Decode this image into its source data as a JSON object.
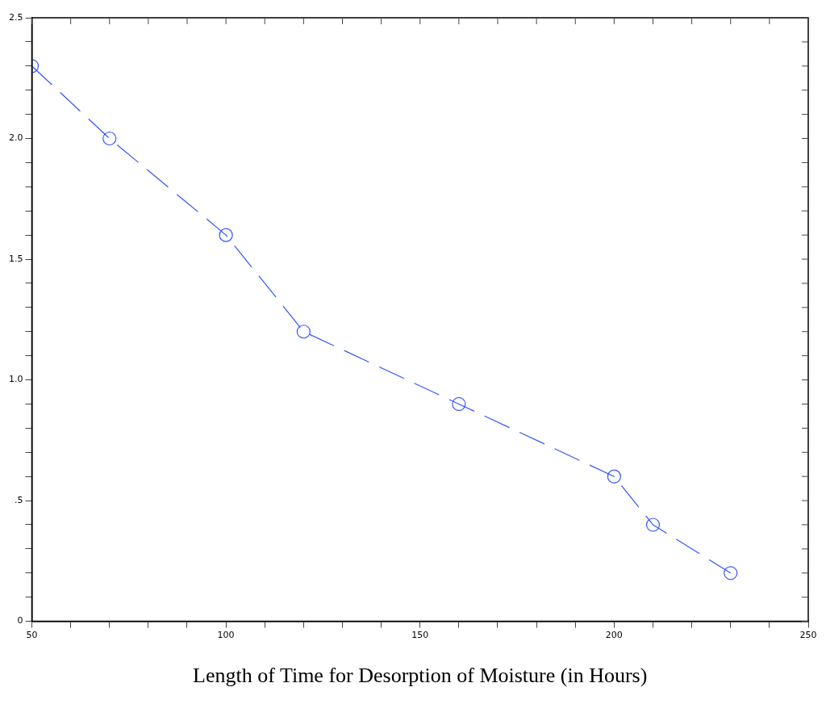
{
  "chart_data": {
    "type": "line",
    "xlabel": "Length of Time for Desorption of Moisture (in Hours)",
    "x": [
      50,
      70,
      100,
      120,
      160,
      200,
      210,
      230
    ],
    "series": [
      {
        "color": "#3355ff",
        "values": [
          2.3,
          2.0,
          1.6,
          1.2,
          0.9,
          0.6,
          0.4,
          0.2
        ]
      }
    ],
    "xlim": [
      50,
      250
    ],
    "xticks": [
      50,
      {
        "value": 60,
        "label": null
      },
      {
        "value": 70,
        "label": null
      },
      {
        "value": 80,
        "label": null
      },
      {
        "value": 90,
        "label": null
      },
      100,
      {
        "value": 110,
        "label": null
      },
      {
        "value": 120,
        "label": null
      },
      {
        "value": 130,
        "label": null
      },
      {
        "value": 140,
        "label": null
      },
      150,
      {
        "value": 160,
        "label": null
      },
      {
        "value": 170,
        "label": null
      },
      {
        "value": 180,
        "label": null
      },
      {
        "value": 190,
        "label": null
      },
      200,
      {
        "value": 210,
        "label": null
      },
      {
        "value": 220,
        "label": null
      },
      {
        "value": 230,
        "label": null
      },
      {
        "value": 240,
        "label": null
      },
      250
    ],
    "ylim": [
      0,
      2.5
    ],
    "yticks": [
      {
        "value": 0,
        "label": "0"
      },
      {
        "value": 0.1,
        "label": null
      },
      {
        "value": 0.2,
        "label": null
      },
      {
        "value": 0.3,
        "label": null
      },
      {
        "value": 0.4,
        "label": null
      },
      {
        "value": 0.5,
        "label": ".5"
      },
      {
        "value": 0.6,
        "label": null
      },
      {
        "value": 0.7,
        "label": null
      },
      {
        "value": 0.8,
        "label": null
      },
      {
        "value": 0.9,
        "label": null
      },
      {
        "value": 1.0,
        "label": "1.0"
      },
      {
        "value": 1.1,
        "label": null
      },
      {
        "value": 1.2,
        "label": null
      },
      {
        "value": 1.3,
        "label": null
      },
      {
        "value": 1.4,
        "label": null
      },
      {
        "value": 1.5,
        "label": "1.5"
      },
      {
        "value": 1.6,
        "label": null
      },
      {
        "value": 1.7,
        "label": null
      },
      {
        "value": 1.8,
        "label": null
      },
      {
        "value": 1.9,
        "label": null
      },
      {
        "value": 2.0,
        "label": "2.0"
      },
      {
        "value": 2.1,
        "label": null
      },
      {
        "value": 2.2,
        "label": null
      },
      {
        "value": 2.3,
        "label": null
      },
      {
        "value": 2.4,
        "label": null
      },
      {
        "value": 2.5,
        "label": "2.5"
      }
    ],
    "grid": false,
    "legend": false,
    "marker": "circle",
    "line_style": "dashed"
  }
}
